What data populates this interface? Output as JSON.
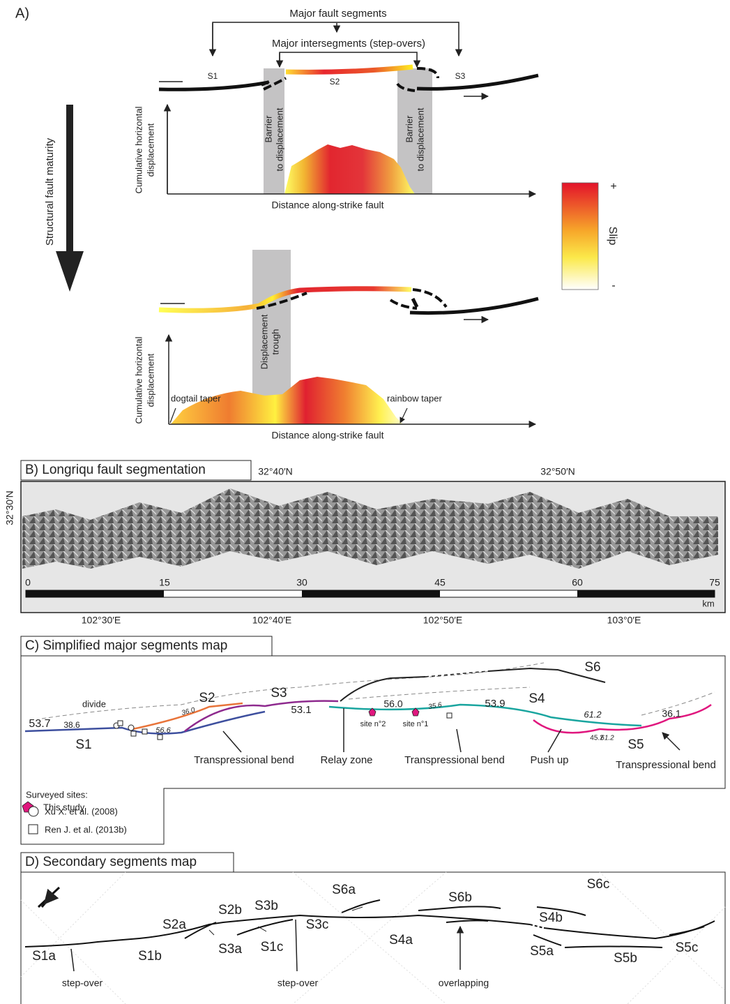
{
  "panel_a": {
    "label": "A)",
    "top_title": "Major fault segments",
    "sub_title": "Major intersegments (step-overs)",
    "segments": [
      "S1",
      "S2",
      "S3"
    ],
    "maturity": "Structural fault maturity",
    "y_axis": [
      "Cumulative horizontal",
      "displacement"
    ],
    "x_axis": "Distance along-strike fault",
    "barrier": [
      "Barrier",
      "to displacement"
    ],
    "trough": [
      "Displacement",
      "trough"
    ],
    "dogtail": "dogtail taper",
    "rainbow": "rainbow taper",
    "colorbar": {
      "title": "Slip",
      "max": "+",
      "min": "-"
    }
  },
  "panel_b": {
    "title": "B) Longriqu fault segmentation",
    "lat_labels": [
      "32°40′N",
      "32°50′N",
      "32°30′N"
    ],
    "lon_labels": [
      "102°30′E",
      "102°40′E",
      "102°50′E",
      "103°0′E"
    ],
    "scale": [
      "0",
      "15",
      "30",
      "45",
      "60",
      "75"
    ],
    "scale_unit": "km"
  },
  "panel_c": {
    "title": "C) Simplified major segments map",
    "segments": [
      "S1",
      "S2",
      "S3",
      "S4",
      "S5",
      "S6"
    ],
    "divide": "divide",
    "slip_values": [
      "53.7",
      "38.6",
      "56.6",
      "36.0",
      "53.1",
      "56.0",
      "35.6",
      "53.9",
      "61.2",
      "45.2",
      "61.2",
      "36.1"
    ],
    "sites": [
      "site n°2",
      "site n°1"
    ],
    "annotations": [
      "Transpressional bend",
      "Relay zone",
      "Transpressional bend",
      "Push up",
      "Transpressional bend"
    ],
    "legend": {
      "title": "Surveyed sites:",
      "items": [
        "This study",
        "Xu X. et al. (2008)",
        "Ren J. et al. (2013b)"
      ]
    }
  },
  "panel_d": {
    "title": "D) Secondary segments map",
    "segments": [
      "S1a",
      "S1b",
      "S1c",
      "S2a",
      "S2b",
      "S3a",
      "S3b",
      "S3c",
      "S4a",
      "S4b",
      "S5a",
      "S5b",
      "S5c",
      "S6a",
      "S6b",
      "S6c"
    ],
    "annotations": [
      "step-over",
      "step-over",
      "overlapping"
    ]
  }
}
